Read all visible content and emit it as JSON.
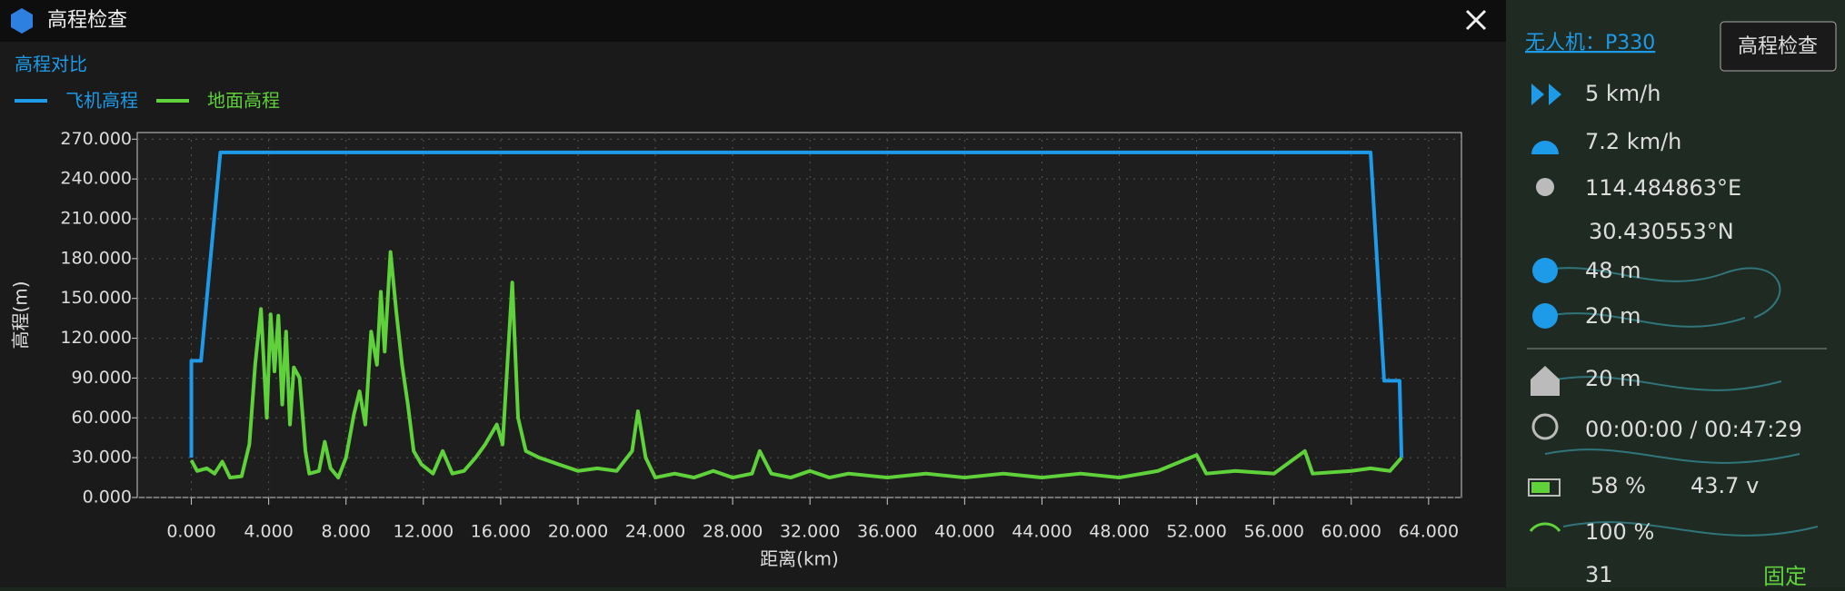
{
  "window": {
    "title": "高程检查",
    "subtitle": "高程对比"
  },
  "chart_data": {
    "type": "line",
    "xlabel": "距离(km)",
    "ylabel": "高程(m)",
    "grid": true,
    "xlim": [
      -2.8,
      65.7
    ],
    "ylim": [
      0,
      275
    ],
    "xticks": [
      {
        "value": 0,
        "label": "0.000"
      },
      {
        "value": 4,
        "label": "4.000"
      },
      {
        "value": 8,
        "label": "8.000"
      },
      {
        "value": 12,
        "label": "12.000"
      },
      {
        "value": 16,
        "label": "16.000"
      },
      {
        "value": 20,
        "label": "20.000"
      },
      {
        "value": 24,
        "label": "24.000"
      },
      {
        "value": 28,
        "label": "28.000"
      },
      {
        "value": 32,
        "label": "32.000"
      },
      {
        "value": 36,
        "label": "36.000"
      },
      {
        "value": 40,
        "label": "40.000"
      },
      {
        "value": 44,
        "label": "44.000"
      },
      {
        "value": 48,
        "label": "48.000"
      },
      {
        "value": 52,
        "label": "52.000"
      },
      {
        "value": 56,
        "label": "56.000"
      },
      {
        "value": 60,
        "label": "60.000"
      },
      {
        "value": 64,
        "label": "64.000"
      }
    ],
    "yticks": [
      {
        "value": 0,
        "label": "0.000"
      },
      {
        "value": 30,
        "label": "30.000"
      },
      {
        "value": 60,
        "label": "60.000"
      },
      {
        "value": 90,
        "label": "90.000"
      },
      {
        "value": 120,
        "label": "120.000"
      },
      {
        "value": 150,
        "label": "150.000"
      },
      {
        "value": 180,
        "label": "180.000"
      },
      {
        "value": 210,
        "label": "210.000"
      },
      {
        "value": 240,
        "label": "240.000"
      },
      {
        "value": 270,
        "label": "270.000"
      }
    ],
    "series": [
      {
        "name": "飞机高程",
        "color": "#1e9be8",
        "x": [
          0,
          0,
          0.5,
          1.5,
          61,
          61.7,
          62.5,
          62.6
        ],
        "values": [
          30,
          103,
          103,
          260,
          260,
          88,
          88,
          30
        ]
      },
      {
        "name": "地面高程",
        "color": "#5fd13a",
        "x": [
          0,
          0.3,
          0.8,
          1.2,
          1.6,
          2.0,
          2.6,
          3.0,
          3.3,
          3.6,
          3.9,
          4.1,
          4.3,
          4.5,
          4.7,
          4.9,
          5.1,
          5.3,
          5.6,
          5.9,
          6.1,
          6.6,
          6.9,
          7.2,
          7.6,
          8.0,
          8.4,
          8.7,
          9.0,
          9.3,
          9.6,
          9.8,
          10.0,
          10.3,
          10.6,
          10.9,
          11.2,
          11.5,
          11.9,
          12.5,
          13.0,
          13.5,
          14.1,
          14.7,
          15.2,
          15.8,
          16.1,
          16.6,
          16.9,
          17.3,
          18,
          19,
          20,
          21,
          22,
          22.8,
          23.1,
          23.5,
          24,
          25,
          26,
          27,
          28,
          29,
          29.4,
          30,
          31,
          32,
          33,
          34,
          36,
          38,
          40,
          42,
          44,
          46,
          48,
          50,
          52,
          52.5,
          54,
          56,
          57.6,
          58,
          60,
          61,
          62,
          62.6
        ],
        "values": [
          28,
          20,
          22,
          18,
          27,
          15,
          16,
          40,
          100,
          142,
          60,
          138,
          95,
          137,
          70,
          125,
          55,
          98,
          90,
          35,
          18,
          20,
          42,
          22,
          15,
          30,
          62,
          80,
          55,
          125,
          100,
          155,
          110,
          185,
          140,
          100,
          70,
          35,
          25,
          18,
          35,
          18,
          20,
          30,
          40,
          55,
          40,
          162,
          60,
          35,
          30,
          25,
          20,
          22,
          20,
          35,
          65,
          30,
          15,
          18,
          15,
          20,
          15,
          18,
          35,
          18,
          15,
          20,
          15,
          18,
          15,
          18,
          15,
          18,
          15,
          18,
          15,
          20,
          32,
          18,
          20,
          18,
          35,
          18,
          20,
          22,
          20,
          30
        ]
      }
    ]
  },
  "panel": {
    "drone": "无人机：P330",
    "button": "高程检查",
    "speed1": "5 km/h",
    "speed2": "7.2 km/h",
    "lon": "114.484863°E",
    "lat": "30.430553°N",
    "alt1": "48 m",
    "alt2": "20 m",
    "home": "20 m",
    "time": "00:00:00 / 00:47:29",
    "battery": "58 %",
    "voltage": "43.7 v",
    "signal": "100 %",
    "sats": "31",
    "mode": "固定"
  }
}
